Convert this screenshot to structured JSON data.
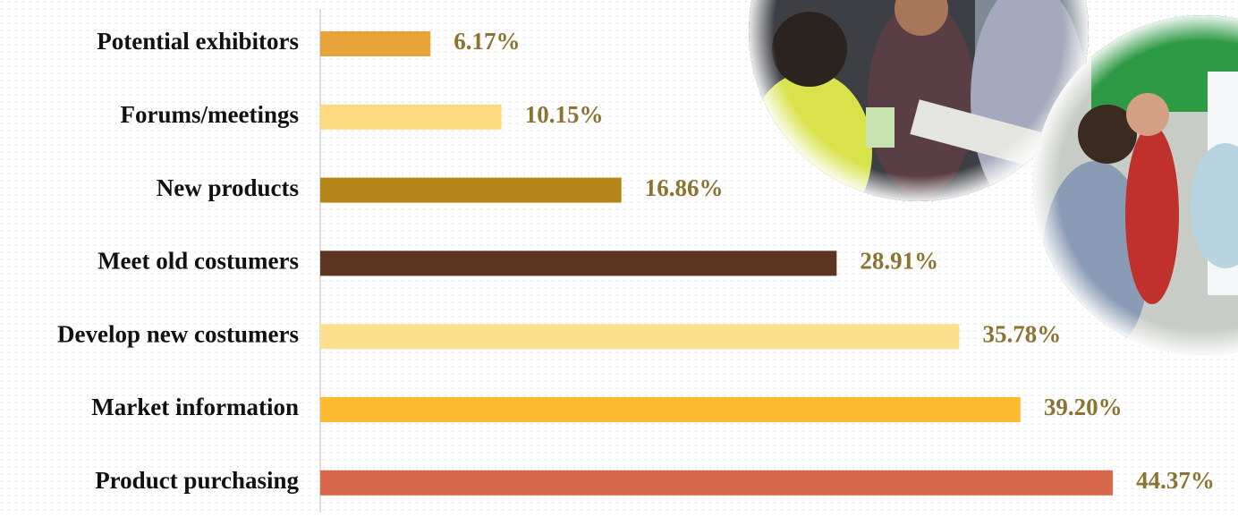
{
  "chart_data": {
    "type": "bar",
    "orientation": "horizontal",
    "categories": [
      "Potential exhibitors",
      "Forums/meetings",
      "New products",
      "Meet old costumers",
      "Develop new costumers",
      "Market information",
      "Product purchasing"
    ],
    "values": [
      6.17,
      10.15,
      16.86,
      28.91,
      35.78,
      39.2,
      44.37
    ],
    "value_labels": [
      "6.17%",
      "10.15%",
      "16.86%",
      "28.91%",
      "35.78%",
      "39.20%",
      "44.37%"
    ],
    "colors": [
      "#E8A33A",
      "#FDDA7F",
      "#B5851A",
      "#5C3623",
      "#FDE08E",
      "#FBBA30",
      "#D9684A"
    ],
    "label_color": "#8A7431"
  }
}
